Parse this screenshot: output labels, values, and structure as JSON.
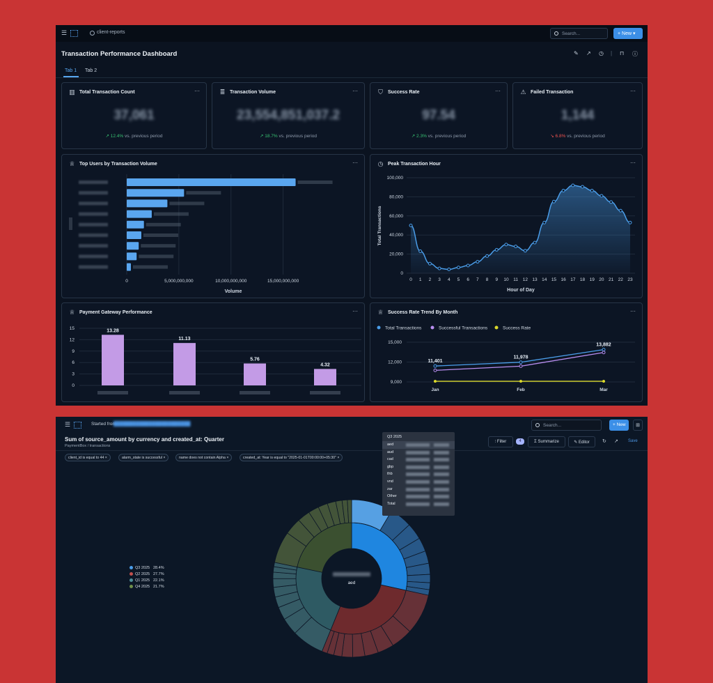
{
  "dashboard": {
    "breadcrumb": "client-reports",
    "search_placeholder": "Search...",
    "new_label": "New",
    "title": "Transaction Performance Dashboard",
    "tabs": [
      {
        "label": "Tab 1",
        "active": true
      },
      {
        "label": "Tab 2",
        "active": false
      }
    ],
    "kpis": [
      {
        "title": "Total Transaction Count",
        "icon": "bar-chart-icon",
        "value": "37,061",
        "delta": "12.4%",
        "direction": "up",
        "suffix": "vs. previous period"
      },
      {
        "title": "Transaction Volume",
        "icon": "database-icon",
        "value": "23,554,851,037.2",
        "delta": "18.7%",
        "direction": "up",
        "suffix": "vs. previous period"
      },
      {
        "title": "Success Rate",
        "icon": "shield-check-icon",
        "value": "97.54",
        "delta": "2.3%",
        "direction": "up",
        "suffix": "vs. previous period"
      },
      {
        "title": "Failed Transaction",
        "icon": "warning-icon",
        "value": "1,144",
        "delta": "6.8%",
        "direction": "down",
        "suffix": "vs. previous period"
      }
    ],
    "card_titles": {
      "top_users": "Top Users by Transaction Volume",
      "peak_hour": "Peak Transaction Hour",
      "gateway": "Payment Gateway Performance",
      "success_trend": "Success Rate Trend By Month"
    },
    "colors": {
      "accent": "#3c8fe7",
      "bar_blue": "#5aa6ef",
      "bar_purple": "#c39be6",
      "up": "#38c172",
      "down": "#ef5350",
      "line_blue": "#4a9de9",
      "line_purple": "#b98ef0",
      "line_yellow": "#d9d72b"
    }
  },
  "chart_data": [
    {
      "type": "bar",
      "orientation": "horizontal",
      "title": "Top Users by Transaction Volume",
      "xlabel": "Volume",
      "ylabel": "",
      "xticks": [
        "0",
        "5,000,000,000",
        "10,000,000,000",
        "15,000,000,000"
      ],
      "xlim": [
        0,
        18500000000
      ],
      "values": [
        16200000000,
        5500000000,
        3900000000,
        2400000000,
        1650000000,
        1400000000,
        1150000000,
        950000000,
        400000000
      ],
      "categories_obscured": true
    },
    {
      "type": "area",
      "title": "Peak Transaction Hour",
      "xlabel": "Hour of Day",
      "ylabel": "Total Transactions",
      "x": [
        0,
        1,
        2,
        3,
        4,
        5,
        6,
        7,
        8,
        9,
        10,
        11,
        12,
        13,
        14,
        15,
        16,
        17,
        18,
        19,
        20,
        21,
        22,
        23
      ],
      "y": [
        50000,
        23000,
        10000,
        5000,
        4000,
        6000,
        8000,
        12000,
        18000,
        24500,
        30000,
        28000,
        23500,
        32000,
        53000,
        75000,
        86500,
        92000,
        90500,
        86500,
        81000,
        74500,
        65500,
        53000
      ],
      "yticks": [
        "0",
        "20,000",
        "40,000",
        "60,000",
        "80,000",
        "100,000"
      ],
      "ylim": [
        0,
        100000
      ]
    },
    {
      "type": "bar",
      "title": "Payment Gateway Performance",
      "values": [
        13.28,
        11.13,
        5.76,
        4.32
      ],
      "labels": [
        "13.28",
        "11.13",
        "5.76",
        "4.32"
      ],
      "yticks": [
        "0",
        "3",
        "6",
        "9",
        "12",
        "15"
      ],
      "ylim": [
        0,
        15
      ],
      "categories_obscured": true
    },
    {
      "type": "line",
      "title": "Success Rate Trend By Month",
      "categories": [
        "Jan",
        "Feb",
        "Mar"
      ],
      "yticks": [
        "9,000",
        "12,000",
        "15,000"
      ],
      "ylim": [
        9000,
        15000
      ],
      "series": [
        {
          "name": "Total Transactions",
          "values": [
            11401,
            11978,
            13882
          ],
          "labels": [
            "11,401",
            "11,978",
            "13,882"
          ]
        },
        {
          "name": "Successful Transactions",
          "values": [
            10750,
            11380,
            13450
          ]
        },
        {
          "name": "Success Rate",
          "values": [
            9098,
            9098,
            9098
          ]
        }
      ]
    },
    {
      "type": "pie",
      "subtype": "sunburst",
      "center_label": "aed",
      "slices": [
        {
          "name": "Q3 2025",
          "pct": "28.4%",
          "value": 28.4
        },
        {
          "name": "Q2 2025",
          "pct": "27.7%",
          "value": 27.7
        },
        {
          "name": "Q1 2025",
          "pct": "22.1%",
          "value": 22.1
        },
        {
          "name": "Q4 2025",
          "pct": "21.7%",
          "value": 21.7
        }
      ]
    }
  ],
  "query": {
    "started_from": "Started from",
    "search_placeholder": "Search...",
    "new_label": "New",
    "title": "Sum of source_amount by currency and created_at: Quarter",
    "subtitle": "PaymentBox / transactions",
    "buttons": {
      "filter": "Filter",
      "filter_count": "4",
      "summarize": "Summarize",
      "editor": "Editor",
      "save": "Save"
    },
    "chips": [
      "client_id is equal to 44",
      "alarm_state is successful",
      "name does not contain Alpha",
      "created_at: Year is equal to \"2025-01-01T00:00:00+05:30\""
    ],
    "tooltip": {
      "header": "Q3 2025",
      "rows": [
        "aed",
        "aud",
        "cad",
        "gbp",
        "thb",
        "vnd",
        "zar",
        "Other",
        "Total"
      ]
    }
  }
}
